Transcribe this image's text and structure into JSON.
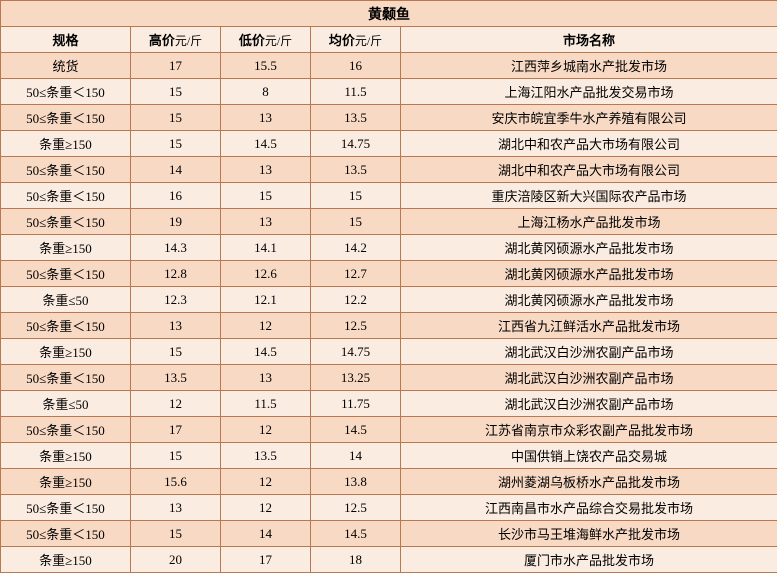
{
  "colors": {
    "row_odd": "#f8d9c4",
    "row_even": "#fbece1",
    "border": "#b87850",
    "text": "#000000"
  },
  "title": "黄颡鱼",
  "columns": {
    "spec": "规格",
    "high_label": "高价",
    "low_label": "低价",
    "avg_label": "均价",
    "unit": "元/斤",
    "market": "市场名称"
  },
  "rows": [
    {
      "spec": "统货",
      "high": "17",
      "low": "15.5",
      "avg": "16",
      "market": "江西萍乡城南水产批发市场"
    },
    {
      "spec": "50≤条重＜150",
      "high": "15",
      "low": "8",
      "avg": "11.5",
      "market": "上海江阳水产品批发交易市场"
    },
    {
      "spec": "50≤条重＜150",
      "high": "15",
      "low": "13",
      "avg": "13.5",
      "market": "安庆市皖宜季牛水产养殖有限公司"
    },
    {
      "spec": "条重≥150",
      "high": "15",
      "low": "14.5",
      "avg": "14.75",
      "market": "湖北中和农产品大市场有限公司"
    },
    {
      "spec": "50≤条重＜150",
      "high": "14",
      "low": "13",
      "avg": "13.5",
      "market": "湖北中和农产品大市场有限公司"
    },
    {
      "spec": "50≤条重＜150",
      "high": "16",
      "low": "15",
      "avg": "15",
      "market": "重庆涪陵区新大兴国际农产品市场"
    },
    {
      "spec": "50≤条重＜150",
      "high": "19",
      "low": "13",
      "avg": "15",
      "market": "上海江杨水产品批发市场"
    },
    {
      "spec": "条重≥150",
      "high": "14.3",
      "low": "14.1",
      "avg": "14.2",
      "market": "湖北黄冈硕源水产品批发市场"
    },
    {
      "spec": "50≤条重＜150",
      "high": "12.8",
      "low": "12.6",
      "avg": "12.7",
      "market": "湖北黄冈硕源水产品批发市场"
    },
    {
      "spec": "条重≤50",
      "high": "12.3",
      "low": "12.1",
      "avg": "12.2",
      "market": "湖北黄冈硕源水产品批发市场"
    },
    {
      "spec": "50≤条重＜150",
      "high": "13",
      "low": "12",
      "avg": "12.5",
      "market": "江西省九江鲜活水产品批发市场"
    },
    {
      "spec": "条重≥150",
      "high": "15",
      "low": "14.5",
      "avg": "14.75",
      "market": "湖北武汉白沙洲农副产品市场"
    },
    {
      "spec": "50≤条重＜150",
      "high": "13.5",
      "low": "13",
      "avg": "13.25",
      "market": "湖北武汉白沙洲农副产品市场"
    },
    {
      "spec": "条重≤50",
      "high": "12",
      "low": "11.5",
      "avg": "11.75",
      "market": "湖北武汉白沙洲农副产品市场"
    },
    {
      "spec": "50≤条重＜150",
      "high": "17",
      "low": "12",
      "avg": "14.5",
      "market": "江苏省南京市众彩农副产品批发市场"
    },
    {
      "spec": "条重≥150",
      "high": "15",
      "low": "13.5",
      "avg": "14",
      "market": "中国供销上饶农产品交易城"
    },
    {
      "spec": "条重≥150",
      "high": "15.6",
      "low": "12",
      "avg": "13.8",
      "market": "湖州菱湖乌板桥水产品批发市场"
    },
    {
      "spec": "50≤条重＜150",
      "high": "13",
      "low": "12",
      "avg": "12.5",
      "market": "江西南昌市水产品综合交易批发市场"
    },
    {
      "spec": "50≤条重＜150",
      "high": "15",
      "low": "14",
      "avg": "14.5",
      "market": "长沙市马王堆海鲜水产批发市场"
    },
    {
      "spec": "条重≥150",
      "high": "20",
      "low": "17",
      "avg": "18",
      "market": "厦门市水产品批发市场"
    }
  ]
}
